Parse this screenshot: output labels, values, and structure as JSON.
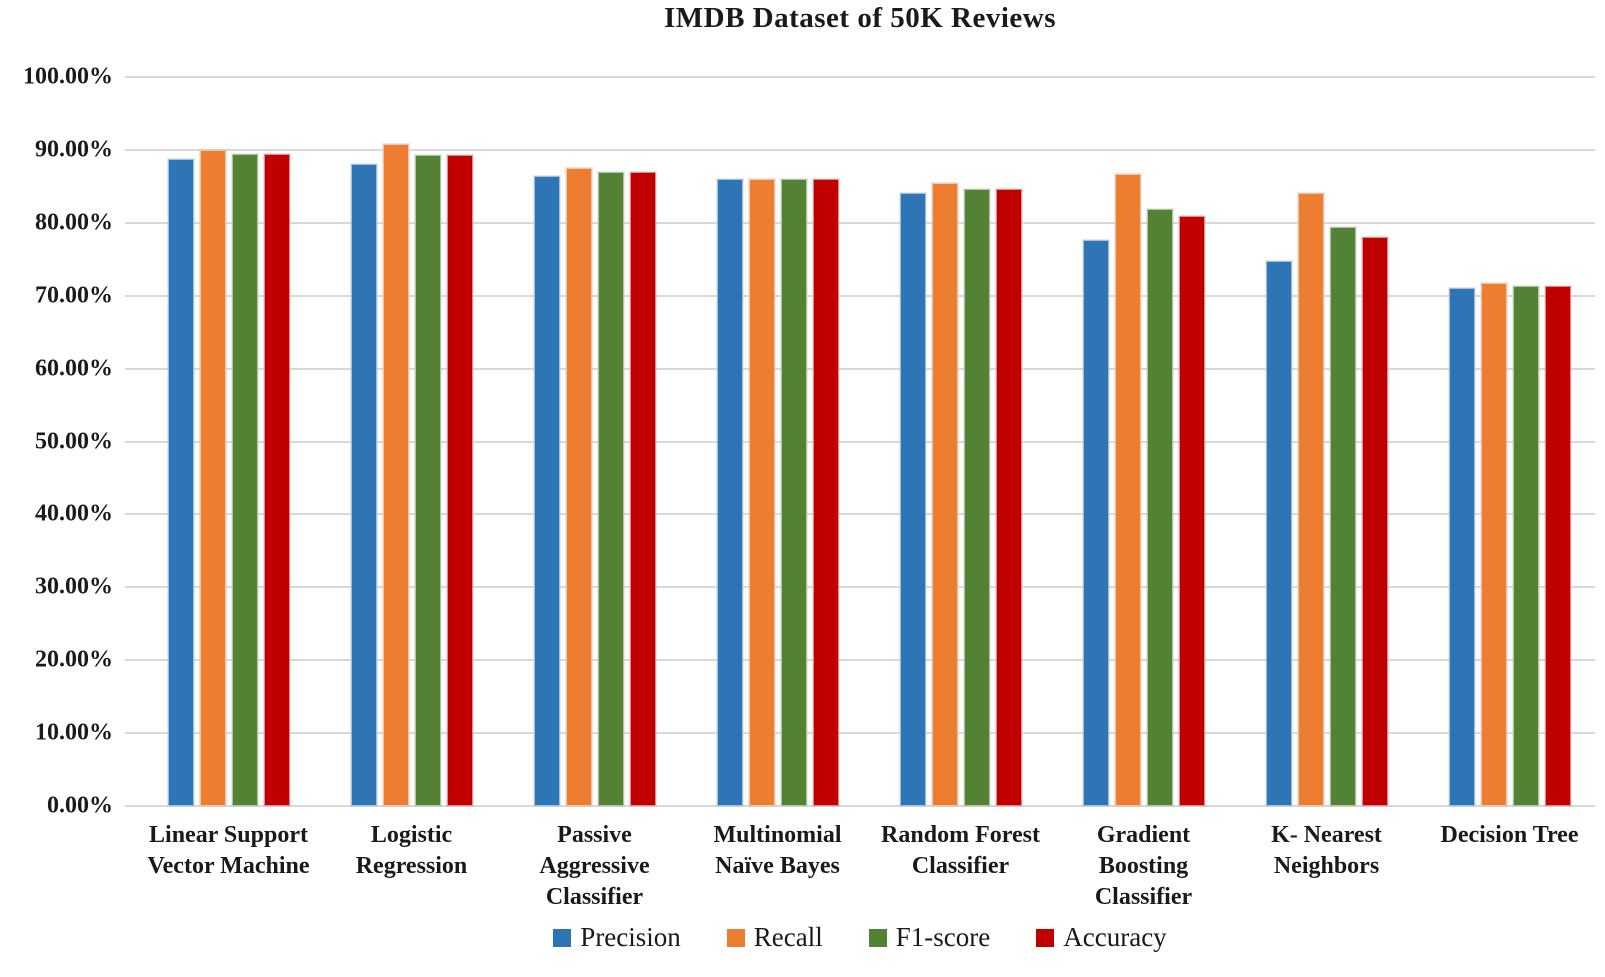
{
  "chart_data": {
    "type": "bar",
    "title": "IMDB Dataset of 50K Reviews",
    "xlabel": "",
    "ylabel": "",
    "unit": "%",
    "categories": [
      "Linear Support\nVector Machine",
      "Logistic\nRegression",
      "Passive\nAggressive\nClassifier",
      "Multinomial\nNaïve Bayes",
      "Random Forest\nClassifier",
      "Gradient\nBoosting\nClassifier",
      "K- Nearest\nNeighbors",
      "Decision Tree"
    ],
    "series": [
      {
        "name": "Precision",
        "color": "#2E75B6",
        "values": [
          88.8,
          88.0,
          86.4,
          86.0,
          84.1,
          77.6,
          74.8,
          71.0
        ]
      },
      {
        "name": "Recall",
        "color": "#ED7D31",
        "values": [
          90.0,
          90.8,
          87.5,
          86.0,
          85.5,
          86.7,
          84.1,
          71.8
        ]
      },
      {
        "name": "F1-score",
        "color": "#548235",
        "values": [
          89.5,
          89.3,
          87.0,
          86.0,
          84.6,
          81.9,
          79.4,
          71.3
        ]
      },
      {
        "name": "Accuracy",
        "color": "#C00000",
        "values": [
          89.5,
          89.3,
          87.0,
          86.0,
          84.6,
          80.9,
          78.1,
          71.3
        ]
      }
    ],
    "y_axis": {
      "min": 0,
      "max": 100,
      "step": 10,
      "tick_labels": [
        "0.00%",
        "10.00%",
        "20.00%",
        "30.00%",
        "40.00%",
        "50.00%",
        "60.00%",
        "70.00%",
        "80.00%",
        "90.00%",
        "100.00%"
      ]
    },
    "grid": true,
    "gridline_color": "#D9D9D9",
    "background_color": "#FFFFFF",
    "legend_position": "bottom",
    "legend": [
      "Precision",
      "Recall",
      "F1-score",
      "Accuracy"
    ]
  }
}
